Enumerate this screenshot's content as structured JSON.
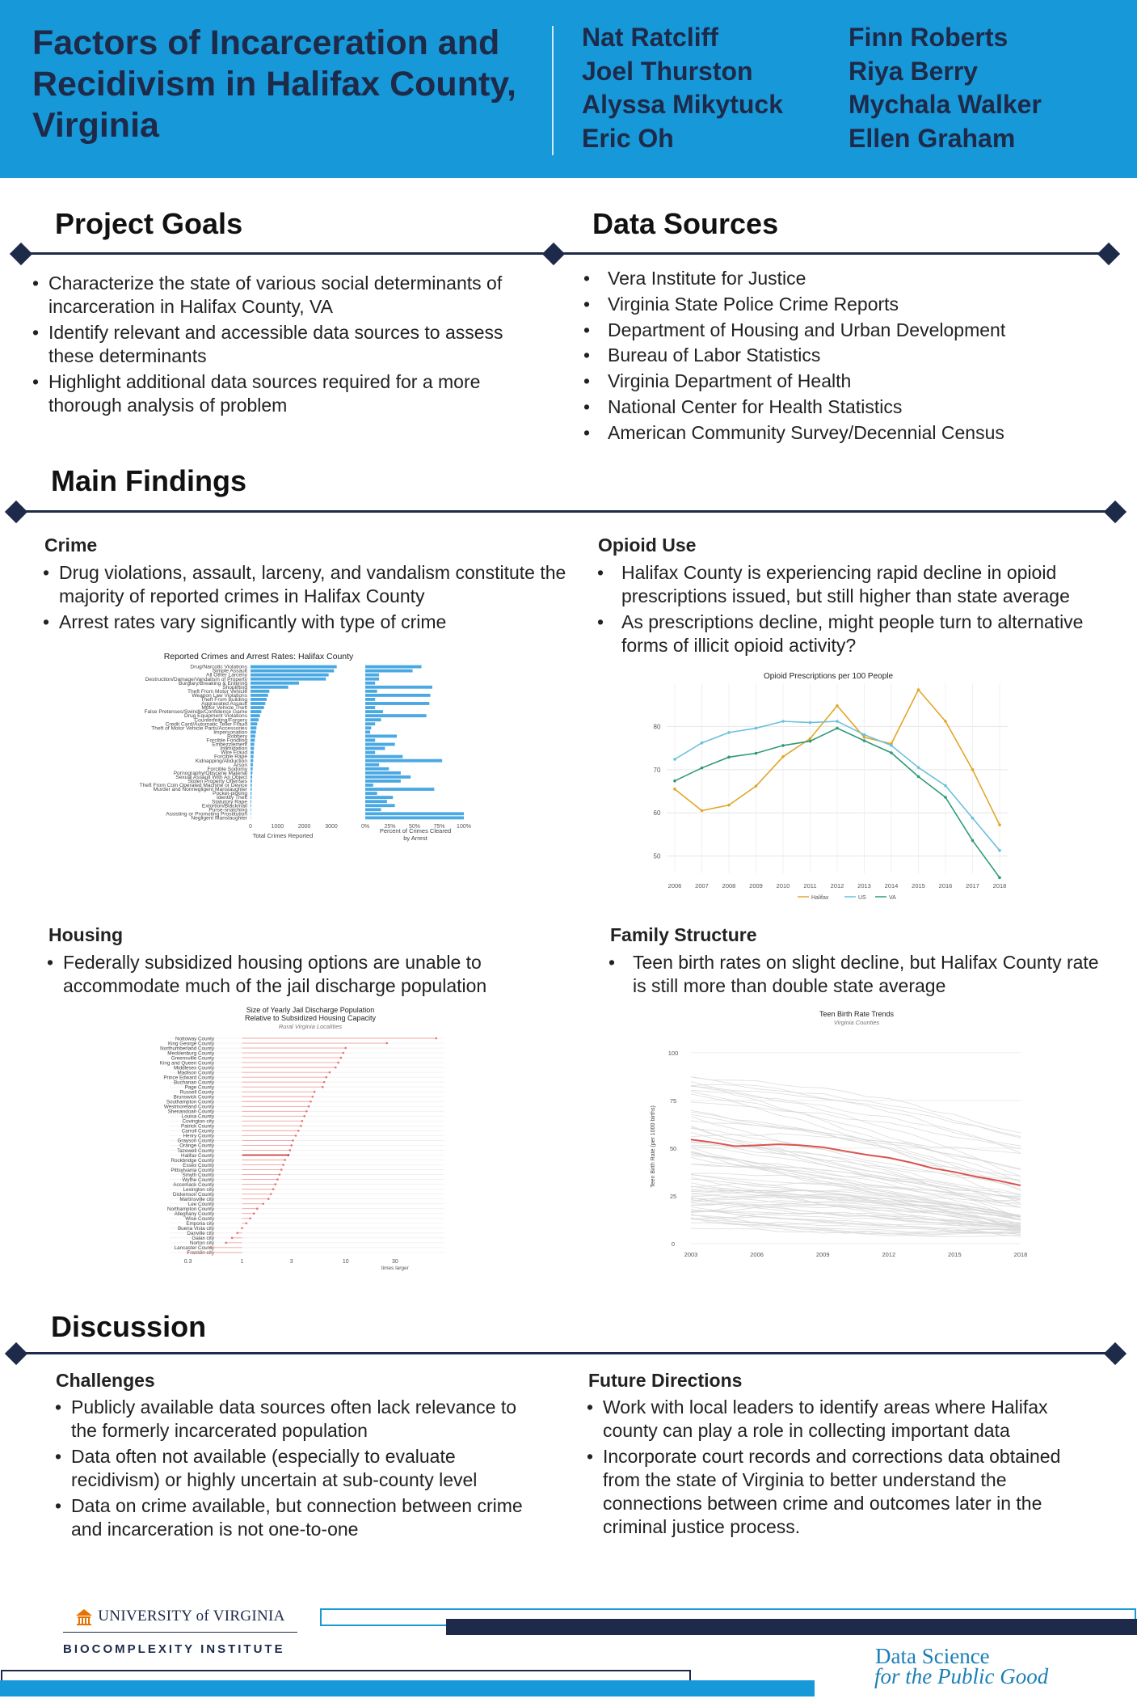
{
  "header": {
    "title": "Factors of Incarceration and Recidivism in Halifax County, Virginia",
    "authors_left": [
      "Nat Ratcliff",
      "Joel Thurston",
      "Alyssa Mikytuck",
      "Eric Oh"
    ],
    "authors_right": [
      "Finn Roberts",
      "Riya Berry",
      "Mychala Walker",
      "Ellen Graham"
    ]
  },
  "goals": {
    "title": "Project Goals",
    "items": [
      "Characterize the state of various social determinants of incarceration in Halifax County, VA",
      "Identify relevant and accessible data sources to assess these determinants",
      "Highlight additional data sources required for a more thorough analysis of problem"
    ]
  },
  "sources": {
    "title": "Data Sources",
    "items": [
      "Vera Institute for Justice",
      "Virginia State Police Crime Reports",
      "Department of Housing and Urban Development",
      "Bureau of Labor Statistics",
      "Virginia Department of Health",
      "National Center for Health Statistics",
      "American Community Survey/Decennial Census"
    ]
  },
  "findings": {
    "title": "Main Findings",
    "crime": {
      "heading": "Crime",
      "items": [
        "Drug violations, assault, larceny, and vandalism constitute the majority of reported crimes in Halifax County",
        "Arrest rates vary significantly with type of crime"
      ]
    },
    "opioid": {
      "heading": "Opioid Use",
      "items": [
        "Halifax County is experiencing rapid decline in opioid prescriptions issued, but still higher than state average",
        "As prescriptions decline, might people turn to alternative forms of illicit opioid activity?"
      ]
    },
    "housing": {
      "heading": "Housing",
      "items": [
        "Federally subsidized housing options are unable to accommodate much of the jail discharge population"
      ]
    },
    "family": {
      "heading": "Family Structure",
      "items": [
        "Teen birth rates on slight decline, but Halifax County rate is still more than double state average"
      ]
    }
  },
  "discussion": {
    "title": "Discussion",
    "challenges": {
      "heading": "Challenges",
      "items": [
        "Publicly available data sources often lack relevance to the formerly incarcerated population",
        "Data often not available (especially to evaluate recidivism) or highly uncertain at sub-county level",
        "Data on crime available, but connection between crime and incarceration is not one-to-one"
      ]
    },
    "future": {
      "heading": "Future Directions",
      "items": [
        "Work with local leaders to identify areas where Halifax county can play a role in collecting important data",
        "Incorporate court records and corrections data obtained from the state of Virginia to better understand the connections between crime and outcomes later in the criminal justice process."
      ]
    }
  },
  "footer": {
    "uva_logo": "UNIVERSITY of VIRGINIA",
    "institute": "BIOCOMPLEXITY INSTITUTE",
    "dspg_line1": "Data Science",
    "dspg_line2": "for the Public Good"
  },
  "colors": {
    "header_blue": "#1798d8",
    "navy": "#1e2a49",
    "bar_blue": "#4aa8e3",
    "halifax": "#e1a62a",
    "us": "#6bc1dd",
    "va": "#2e9a7a",
    "dspg_blue": "#1b7fb6",
    "uva_orange": "#e57200"
  },
  "chart_data": [
    {
      "type": "bar",
      "title": "Reported Crimes and Arrest Rates: Halifax County",
      "categories": [
        "Drug/Narcotic Violations",
        "Simple Assault",
        "All Other Larceny",
        "Destruction/Damage/Vandalism of Property",
        "Burglary/Breaking & Entering",
        "Shoplifting",
        "Theft From Motor Vehicle",
        "Weapon Law Violations",
        "Theft From Building",
        "Aggravated Assault",
        "Motor Vehicle Theft",
        "False Pretenses/Swindle/Confidence Game",
        "Drug Equipment Violations",
        "Counterfeiting/Forgery",
        "Credit Card/Automatic Teller Fraud",
        "Theft of Motor Vehicle Parts/Accessories",
        "Impersonation",
        "Robbery",
        "Forcible Fondling",
        "Embezzlement",
        "Intimidation",
        "Wire Fraud",
        "Forcible Rape",
        "Kidnapping/Abduction",
        "Arson",
        "Forcible Sodomy",
        "Pornography/Obscene Material",
        "Sexual Assault With An Object",
        "Stolen Property Offenses",
        "Theft From Coin Operated Machine or Device",
        "Murder and Nonnegligent Manslaughter",
        "Pocket-picking",
        "Identity Theft",
        "Statutory Rape",
        "Extortion/Blackmail",
        "Purse-snatching",
        "Assisting or Promoting Prostitution",
        "Negligent Manslaughter"
      ],
      "series": [
        {
          "name": "Total Crimes Reported",
          "values": [
            3200,
            3100,
            2900,
            2800,
            1800,
            1400,
            700,
            650,
            600,
            550,
            500,
            400,
            350,
            300,
            250,
            220,
            200,
            180,
            160,
            140,
            130,
            120,
            110,
            100,
            90,
            80,
            70,
            60,
            55,
            50,
            45,
            40,
            35,
            30,
            25,
            20,
            15,
            10
          ]
        },
        {
          "name": "Percent of Crimes Cleared by Arrest",
          "values": [
            57,
            48,
            14,
            14,
            10,
            68,
            12,
            66,
            10,
            65,
            10,
            18,
            62,
            16,
            10,
            6,
            5,
            32,
            10,
            30,
            20,
            10,
            38,
            78,
            14,
            24,
            36,
            46,
            36,
            8,
            70,
            12,
            28,
            22,
            30,
            16,
            100,
            100
          ]
        }
      ],
      "xlabel": [
        "Total Crimes Reported",
        "Percent of Crimes Cleared by Arrest"
      ],
      "x_ticks_left": [
        "0",
        "1000",
        "2000",
        "3000"
      ],
      "x_ticks_right": [
        "0%",
        "25%",
        "50%",
        "75%",
        "100%"
      ]
    },
    {
      "type": "line",
      "title": "Opioid Prescriptions per 100 People",
      "x": [
        2006,
        2007,
        2008,
        2009,
        2010,
        2011,
        2012,
        2013,
        2014,
        2015,
        2016,
        2017,
        2018
      ],
      "series": [
        {
          "name": "Halifax",
          "values": [
            65.5,
            60.5,
            61.8,
            66.2,
            73.0,
            77.2,
            84.8,
            77.5,
            76.0,
            88.5,
            81.2,
            70.0,
            57.2
          ]
        },
        {
          "name": "US",
          "values": [
            72.4,
            76.2,
            78.6,
            79.6,
            81.2,
            80.9,
            81.2,
            78.1,
            75.6,
            70.5,
            66.3,
            58.8,
            51.3
          ]
        },
        {
          "name": "VA",
          "values": [
            67.4,
            70.4,
            72.9,
            73.8,
            75.6,
            76.6,
            79.6,
            76.7,
            73.9,
            68.4,
            63.6,
            53.6,
            45.0
          ]
        }
      ],
      "y_ticks": [
        50,
        60,
        70,
        80
      ],
      "ylim": [
        46,
        90
      ]
    },
    {
      "type": "scatter",
      "title": "Size of Yearly Jail Discharge Population Relative to Subsidized Housing Capacity",
      "subtitle": "Rural Virginia Localities",
      "categories": [
        "Nottoway County",
        "King George County",
        "Northumberland County",
        "Mecklenburg County",
        "Greensville County",
        "King and Queen County",
        "Middlesex County",
        "Madison County",
        "Prince Edward County",
        "Buchanan County",
        "Page County",
        "Russell County",
        "Brunswick County",
        "Southampton County",
        "Westmoreland County",
        "Shenandoah County",
        "Louisa County",
        "Covington city",
        "Patrick County",
        "Carroll County",
        "Henry County",
        "Grayson County",
        "Orange County",
        "Tazewell County",
        "Halifax County",
        "Rockbridge County",
        "Essex County",
        "Pittsylvania County",
        "Smyth County",
        "Wythe County",
        "Accomack County",
        "Lexington city",
        "Dickenson County",
        "Martinsville city",
        "Lee County",
        "Northampton County",
        "Alleghany County",
        "Wise County",
        "Emporia city",
        "Buena Vista city",
        "Danville city",
        "Galax city",
        "Norton city",
        "Lancaster County",
        "Franklin city"
      ],
      "values": [
        75,
        25,
        10,
        9.5,
        9,
        8.5,
        8,
        7,
        6.5,
        6.2,
        6,
        5,
        4.8,
        4.6,
        4.4,
        4.2,
        4,
        3.8,
        3.7,
        3.5,
        3.3,
        3.1,
        3,
        2.9,
        2.8,
        2.6,
        2.5,
        2.4,
        2.3,
        2.2,
        2.1,
        2.0,
        1.9,
        1.8,
        1.6,
        1.4,
        1.3,
        1.2,
        1.1,
        1.0,
        0.9,
        0.8,
        0.7,
        0.5,
        0.3
      ],
      "highlight": "Halifax County",
      "x_ticks": [
        "0.3",
        "1",
        "3",
        "10",
        "30"
      ],
      "xlabel": "times larger",
      "x_scale": "log"
    },
    {
      "type": "line",
      "title": "Teen Birth Rate Trends",
      "subtitle": "Virginia Counties",
      "x": [
        2003,
        2004,
        2005,
        2006,
        2007,
        2008,
        2009,
        2010,
        2011,
        2012,
        2013,
        2014,
        2015,
        2016,
        2017,
        2018
      ],
      "series": [
        {
          "name": "Halifax County",
          "values": [
            54.5,
            53,
            51,
            51.5,
            52,
            51.5,
            50.5,
            48.5,
            46.5,
            45,
            42.5,
            39.5,
            37.5,
            35,
            33,
            30.5
          ]
        }
      ],
      "x_ticks": [
        "2003",
        "2006",
        "2009",
        "2012",
        "2015",
        "2018"
      ],
      "y_ticks": [
        "0",
        "25",
        "50",
        "75",
        "100"
      ],
      "ylabel": "Teen Birth Rate (per 1000 births)",
      "ylim": [
        0,
        105
      ]
    }
  ]
}
